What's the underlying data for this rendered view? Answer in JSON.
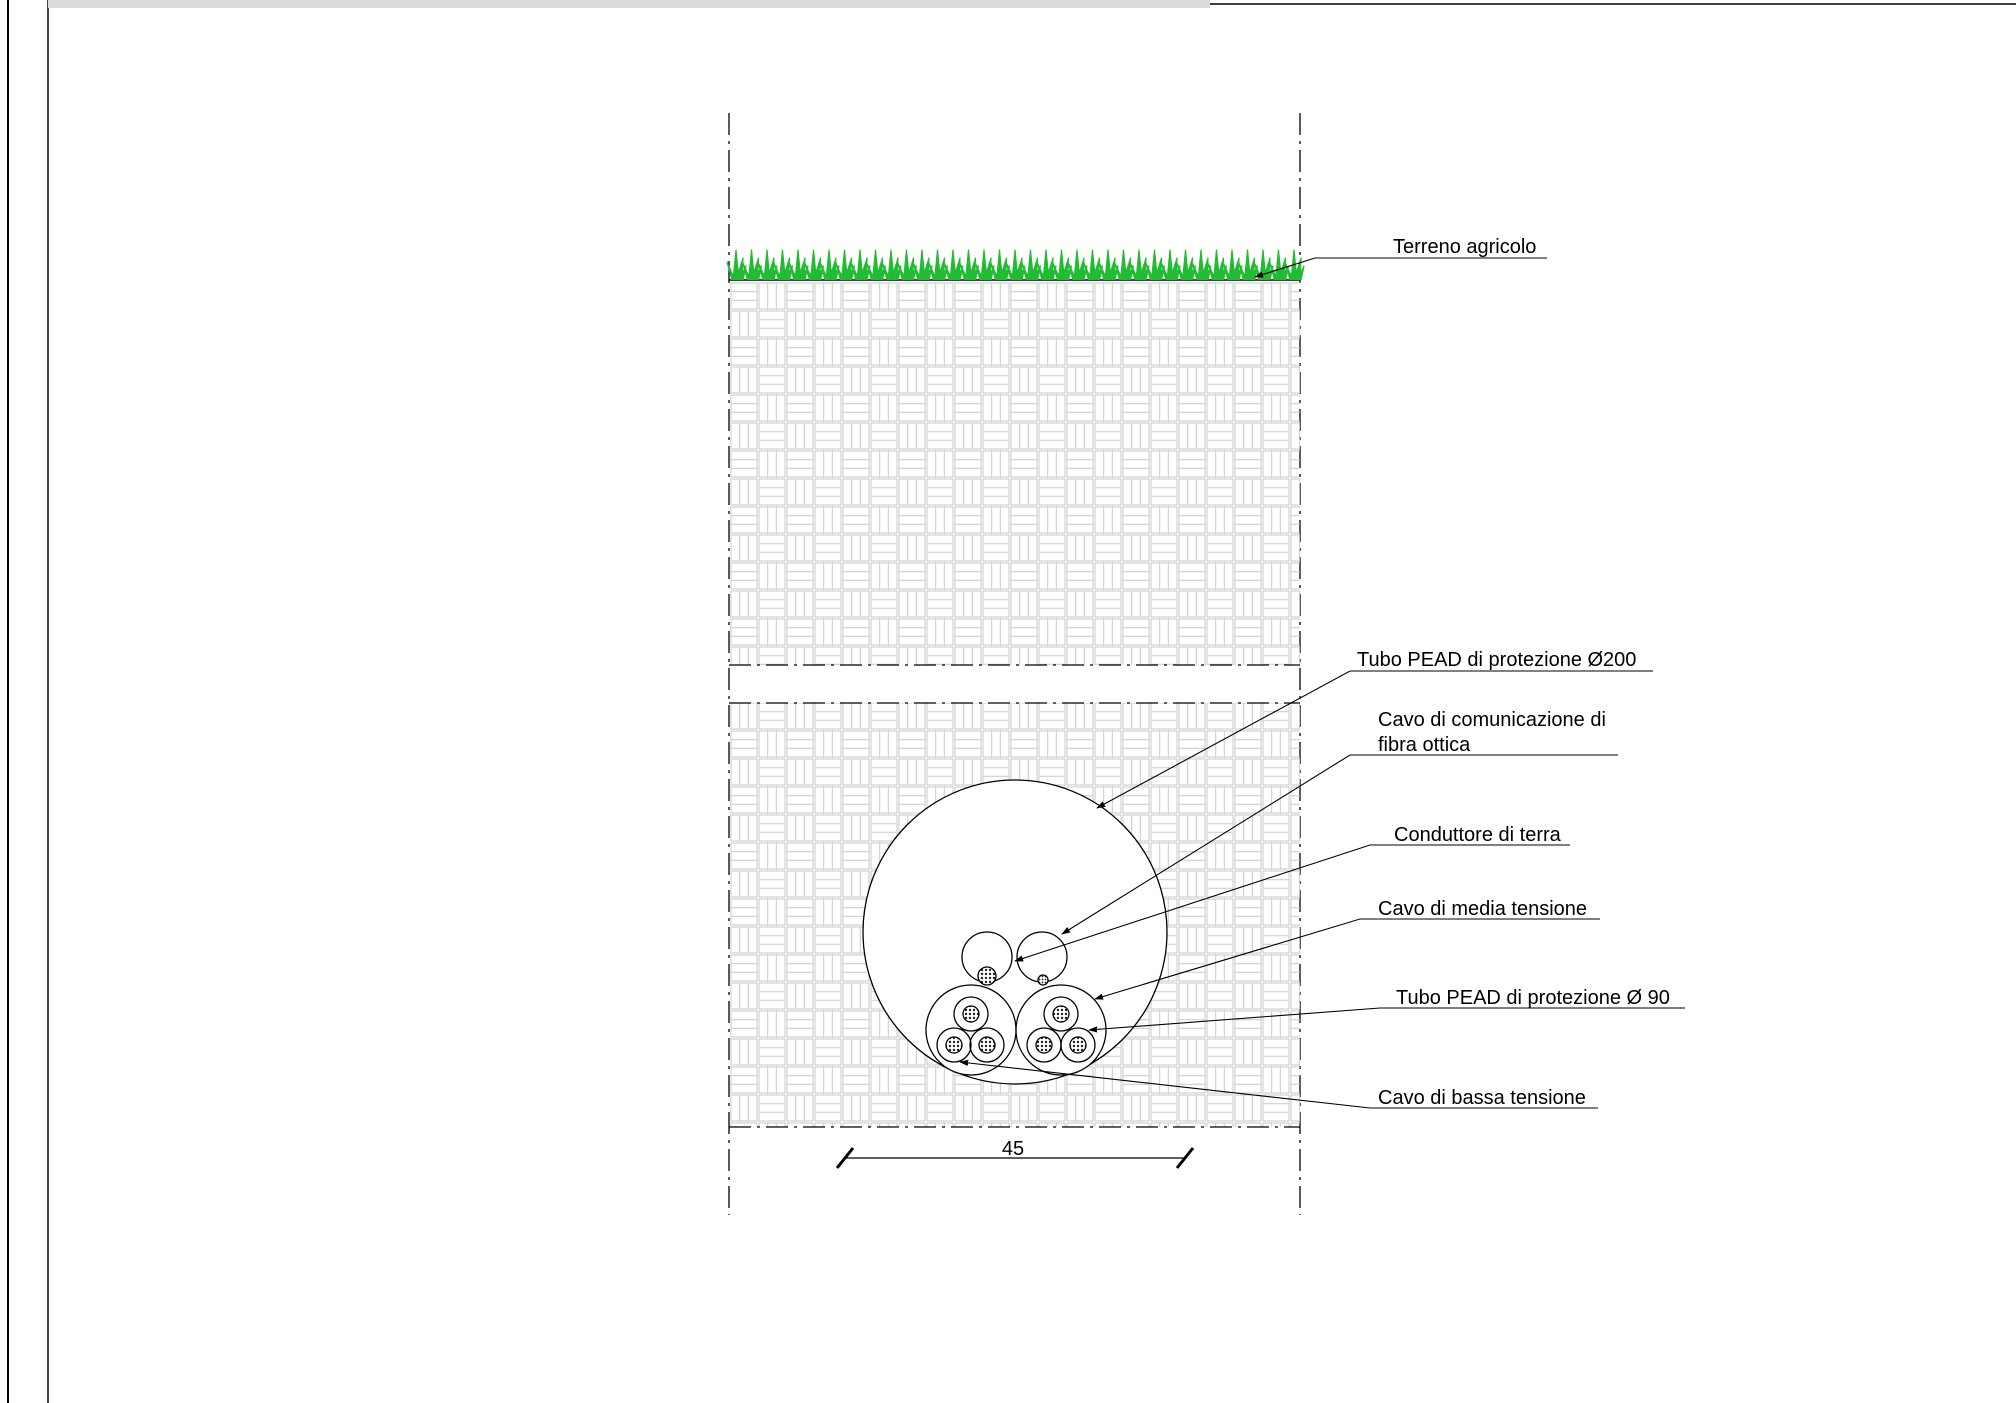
{
  "drawing": {
    "labels": {
      "topsoil": "Terreno agricolo",
      "outer_conduit": "Tubo PEAD di protezione Ø200",
      "fiber_cable_line1": "Cavo di comunicazione di",
      "fiber_cable_line2": "fibra ottica",
      "earth_conductor": "Conduttore di terra",
      "mv_cable": "Cavo di media tensione",
      "inner_conduit": "Tubo PEAD di protezione Ø 90",
      "lv_cable": "Cavo di bassa tensione"
    },
    "dimension": {
      "width_value": "45"
    },
    "colors": {
      "grass": "#22bb33",
      "line": "#000000",
      "hatch": "#c9c9c9"
    }
  }
}
